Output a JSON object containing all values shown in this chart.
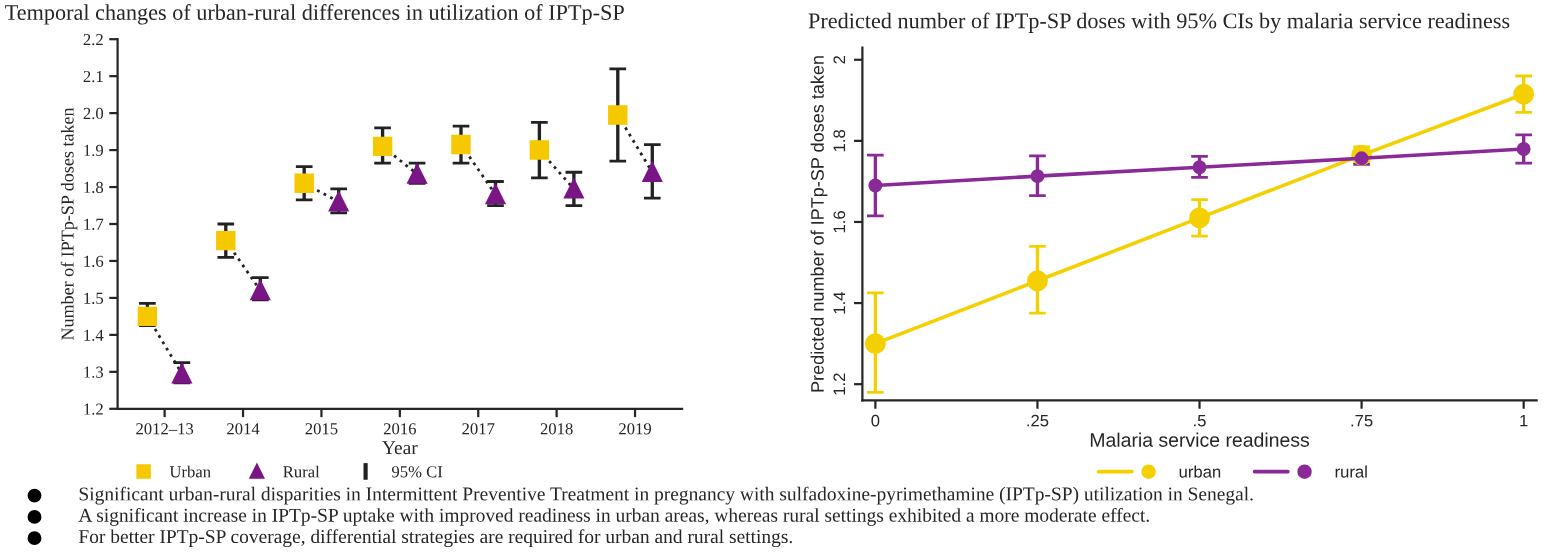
{
  "chart_data": [
    {
      "type": "scatter",
      "title": "Temporal changes of urban-rural differences in utilization of IPTp-SP",
      "xlabel": "Year",
      "ylabel": "Number of IPTp-SP doses taken",
      "categories": [
        "2012–13",
        "2014",
        "2015",
        "2016",
        "2017",
        "2018",
        "2019"
      ],
      "series": [
        {
          "name": "Urban",
          "color": "#f5c800",
          "marker": "square",
          "values": [
            1.45,
            1.655,
            1.81,
            1.91,
            1.915,
            1.9,
            1.995
          ],
          "errors": [
            [
              1.425,
              1.485
            ],
            [
              1.61,
              1.7
            ],
            [
              1.765,
              1.855
            ],
            [
              1.865,
              1.96
            ],
            [
              1.865,
              1.965
            ],
            [
              1.825,
              1.975
            ],
            [
              1.87,
              2.12
            ]
          ]
        },
        {
          "name": "Rural",
          "color": "#7a1585",
          "marker": "triangle",
          "values": [
            1.295,
            1.52,
            1.76,
            1.835,
            1.78,
            1.795,
            1.84
          ],
          "errors": [
            [
              1.27,
              1.325
            ],
            [
              1.495,
              1.555
            ],
            [
              1.73,
              1.795
            ],
            [
              1.81,
              1.865
            ],
            [
              1.75,
              1.815
            ],
            [
              1.75,
              1.84
            ],
            [
              1.77,
              1.915
            ]
          ]
        }
      ],
      "ylim": [
        1.2,
        2.2
      ],
      "yticks": [
        1.2,
        1.3,
        1.4,
        1.5,
        1.6,
        1.7,
        1.8,
        1.9,
        {
          "value": 2.0,
          "label": "2.0"
        },
        2.1,
        2.2
      ],
      "grid": false,
      "legend": "bottom",
      "annotations": [
        "95% CI"
      ]
    },
    {
      "type": "line",
      "title": "Predicted number of IPTp-SP doses with 95% CIs by malaria service readiness",
      "xlabel": "Malaria service readiness",
      "ylabel": "Predicted number of IPTp-SP doses taken",
      "x": [
        0,
        0.25,
        0.5,
        0.75,
        1
      ],
      "series": [
        {
          "name": "urban",
          "color": "#f5d000",
          "marker": "circle",
          "values": [
            1.3,
            1.455,
            1.61,
            1.765,
            1.915
          ],
          "errors": [
            [
              1.18,
              1.425
            ],
            [
              1.375,
              1.54
            ],
            [
              1.565,
              1.655
            ],
            [
              1.745,
              1.785
            ],
            [
              1.87,
              1.96
            ]
          ]
        },
        {
          "name": "rural",
          "color": "#8a2a98",
          "marker": "circle",
          "values": [
            1.69,
            1.713,
            1.735,
            1.757,
            1.78
          ],
          "errors": [
            [
              1.615,
              1.765
            ],
            [
              1.665,
              1.763
            ],
            [
              1.71,
              1.762
            ],
            [
              1.742,
              1.772
            ],
            [
              1.745,
              1.815
            ]
          ]
        }
      ],
      "xlim": [
        -0.02,
        1.02
      ],
      "xticks": [
        0,
        {
          "value": 0.25,
          "label": ".25"
        },
        {
          "value": 0.5,
          "label": ".5"
        },
        {
          "value": 0.75,
          "label": ".75"
        },
        1
      ],
      "ylim": [
        1.16,
        2.03
      ],
      "yticks": [
        1.2,
        1.4,
        1.6,
        1.8,
        2
      ],
      "grid": false,
      "legend": "bottom",
      "annotations": [
        "Significant urban-rural disparities in Intermittent Preventive Treatment in pregnancy with sulfadoxine-pyrimethamine (IPTp-SP) utilization in Senegal.",
        "A significant increase in IPTp-SP uptake with improved readiness in urban areas, whereas rural settings exhibited a more moderate effect.",
        "For better IPTp-SP coverage, differential strategies are required for urban and rural settings."
      ]
    }
  ]
}
